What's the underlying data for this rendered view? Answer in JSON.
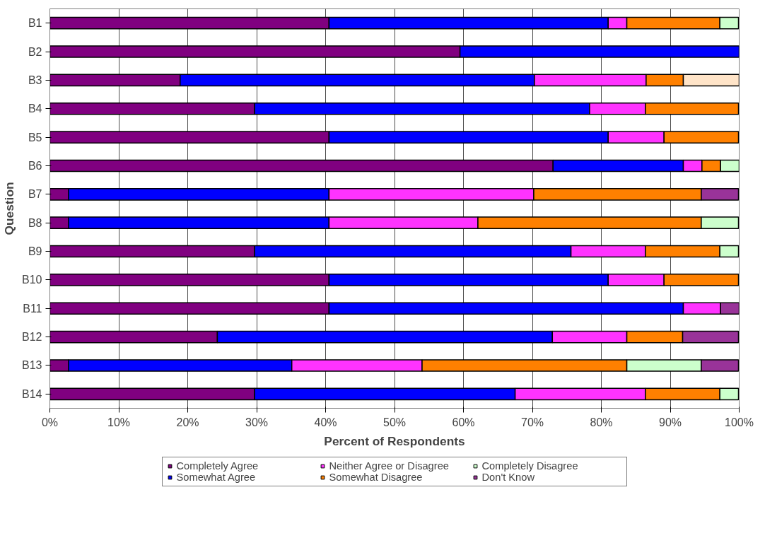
{
  "chart_data": {
    "type": "bar",
    "orientation": "horizontal",
    "stacked": true,
    "xlabel": "Percent of Respondents",
    "ylabel": "Question",
    "categories": [
      "B1",
      "B2",
      "B3",
      "B4",
      "B5",
      "B6",
      "B7",
      "B8",
      "B9",
      "B10",
      "B11",
      "B12",
      "B13",
      "B14"
    ],
    "series": [
      {
        "name": "Completely Agree",
        "color": "#800080",
        "values": [
          40.5,
          59.5,
          18.9,
          29.7,
          40.5,
          73.0,
          2.7,
          2.7,
          29.7,
          40.5,
          40.5,
          24.3,
          2.7,
          29.7
        ]
      },
      {
        "name": "Somewhat Agree",
        "color": "#0000ff",
        "values": [
          40.5,
          40.5,
          51.4,
          48.6,
          40.5,
          18.9,
          37.8,
          37.8,
          45.9,
          40.5,
          51.4,
          48.6,
          32.4,
          37.8
        ]
      },
      {
        "name": "Neither Agree or Disagree",
        "color": "#ff33ff",
        "values": [
          2.7,
          null,
          16.2,
          8.1,
          8.1,
          2.7,
          29.7,
          21.6,
          10.8,
          8.1,
          5.4,
          10.8,
          18.9,
          18.9
        ]
      },
      {
        "name": "Somewhat Disagree",
        "color": "#ff8000",
        "values": [
          13.5,
          null,
          5.4,
          13.5,
          10.8,
          2.7,
          24.3,
          32.4,
          10.8,
          10.8,
          null,
          8.1,
          29.7,
          10.8
        ]
      },
      {
        "name": "Completely Disagree",
        "color": "#ccffcc",
        "colors": [
          "#ccffcc",
          "#ccffcc",
          "#ffe4c8",
          "#ccffcc",
          "#ccffcc",
          "#ccffcc",
          "#ccffcc",
          "#ccffcc",
          "#ccffcc",
          "#ccffcc",
          "#ccffcc",
          "#ccffcc",
          "#ccffcc",
          "#ccffcc"
        ],
        "values": [
          2.7,
          null,
          8.1,
          null,
          null,
          2.7,
          null,
          5.4,
          2.7,
          null,
          null,
          null,
          10.8,
          2.7
        ]
      },
      {
        "name": "Don't Know",
        "color": "#993399",
        "values": [
          null,
          null,
          null,
          null,
          null,
          null,
          5.4,
          null,
          null,
          null,
          2.7,
          8.1,
          5.4,
          null
        ]
      }
    ],
    "xlim": [
      0,
      100
    ],
    "xticks": [
      {
        "value": 0,
        "label": "0%"
      },
      {
        "value": 10,
        "label": "10%"
      },
      {
        "value": 20,
        "label": "20%"
      },
      {
        "value": 30,
        "label": "30%"
      },
      {
        "value": 40,
        "label": "40%"
      },
      {
        "value": 50,
        "label": "50%"
      },
      {
        "value": 60,
        "label": "60%"
      },
      {
        "value": 70,
        "label": "70%"
      },
      {
        "value": 80,
        "label": "80%"
      },
      {
        "value": 90,
        "label": "90%"
      },
      {
        "value": 100,
        "label": "100%"
      }
    ],
    "grid": "x",
    "legend": "bottom"
  }
}
